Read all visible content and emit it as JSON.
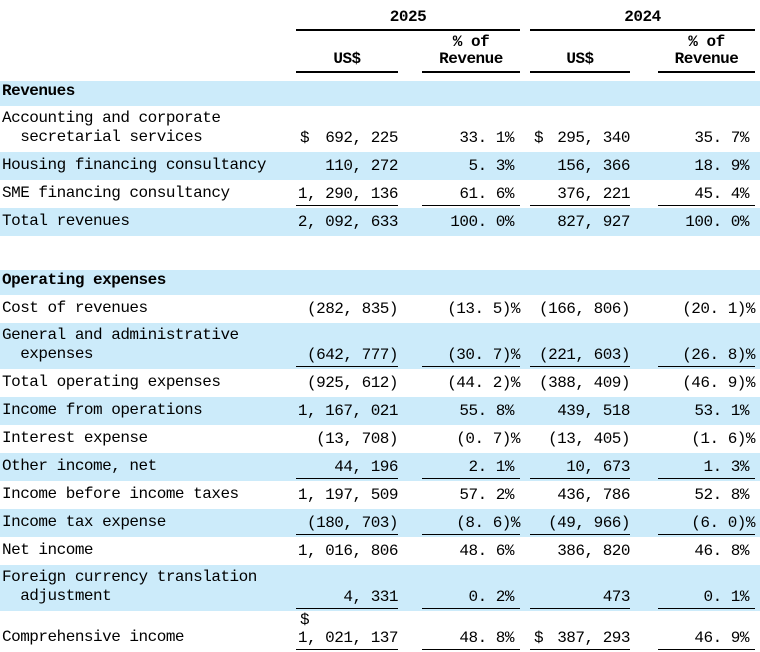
{
  "meta": {
    "row_highlight_color": "#ccebfa",
    "text_color": "#000000",
    "background_color": "#ffffff"
  },
  "header": {
    "col2025": "2025",
    "col2024": "2024",
    "usd_label": "US$",
    "pct_label_line1": "% of",
    "pct_label_line2": "Revenue"
  },
  "table": {
    "rows": [
      {
        "type": "section",
        "shaded": true,
        "lines": [
          "Revenues"
        ]
      },
      {
        "type": "data",
        "shaded": false,
        "underline": false,
        "lines": [
          "Accounting and corporate",
          "  secretarial services"
        ],
        "d25": "$",
        "usd25": "692, 225",
        "pct25": "33. 1%",
        "d24": "$",
        "usd24": "295, 340",
        "pct24": "35. 7%"
      },
      {
        "type": "data",
        "shaded": true,
        "underline": false,
        "lines": [
          "Housing financing consultancy"
        ],
        "usd25": "110, 272",
        "pct25": "5. 3%",
        "usd24": "156, 366",
        "pct24": "18. 9%"
      },
      {
        "type": "data",
        "shaded": false,
        "underline": true,
        "lines": [
          "SME financing consultancy"
        ],
        "usd25": "1, 290, 136",
        "pct25": "61. 6%",
        "usd24": "376, 221",
        "pct24": "45. 4%"
      },
      {
        "type": "data",
        "shaded": true,
        "underline": false,
        "lines": [
          "Total revenues"
        ],
        "usd25": "2, 092, 633",
        "pct25": "100. 0%",
        "usd24": "827, 927",
        "pct24": "100. 0%"
      },
      {
        "type": "spacer"
      },
      {
        "type": "section",
        "shaded": true,
        "lines": [
          "Operating expenses"
        ]
      },
      {
        "type": "data",
        "shaded": false,
        "underline": false,
        "lines": [
          "Cost of revenues"
        ],
        "usd25": "(282, 835)",
        "pct25": "(13. 5)%",
        "usd24": "(166, 806)",
        "pct24": "(20. 1)%"
      },
      {
        "type": "data",
        "shaded": true,
        "underline": true,
        "lines": [
          "General and administrative",
          "  expenses"
        ],
        "usd25": "(642, 777)",
        "pct25": "(30. 7)%",
        "usd24": "(221, 603)",
        "pct24": "(26. 8)%"
      },
      {
        "type": "data",
        "shaded": false,
        "underline": false,
        "lines": [
          "Total operating expenses"
        ],
        "usd25": "(925, 612)",
        "pct25": "(44. 2)%",
        "usd24": "(388, 409)",
        "pct24": "(46. 9)%"
      },
      {
        "type": "data",
        "shaded": true,
        "underline": false,
        "lines": [
          "Income from operations"
        ],
        "usd25": "1, 167, 021",
        "pct25": "55. 8%",
        "usd24": "439, 518",
        "pct24": "53. 1%"
      },
      {
        "type": "data",
        "shaded": false,
        "underline": false,
        "lines": [
          "Interest expense"
        ],
        "usd25": "(13, 708)",
        "pct25": "(0. 7)%",
        "usd24": "(13, 405)",
        "pct24": "(1. 6)%"
      },
      {
        "type": "data",
        "shaded": true,
        "underline": true,
        "lines": [
          "Other income, net"
        ],
        "usd25": "44, 196",
        "pct25": "2. 1%",
        "usd24": "10, 673",
        "pct24": "1. 3%"
      },
      {
        "type": "data",
        "shaded": false,
        "underline": false,
        "lines": [
          "Income before income taxes"
        ],
        "usd25": "1, 197, 509",
        "pct25": "57. 2%",
        "usd24": "436, 786",
        "pct24": "52. 8%"
      },
      {
        "type": "data",
        "shaded": true,
        "underline": true,
        "lines": [
          "Income tax expense"
        ],
        "usd25": "(180, 703)",
        "pct25": "(8. 6)%",
        "usd24": "(49, 966)",
        "pct24": "(6. 0)%"
      },
      {
        "type": "data",
        "shaded": false,
        "underline": false,
        "lines": [
          "Net income"
        ],
        "usd25": "1, 016, 806",
        "pct25": "48. 6%",
        "usd24": "386, 820",
        "pct24": "46. 8%"
      },
      {
        "type": "data",
        "shaded": true,
        "underline": true,
        "lines": [
          "Foreign currency translation",
          "  adjustment"
        ],
        "usd25": "4, 331",
        "pct25": "0. 2%",
        "usd24": "473",
        "pct24": "0. 1%"
      },
      {
        "type": "data",
        "shaded": false,
        "underline": true,
        "lines": [
          "Comprehensive income"
        ],
        "d25": "$",
        "usd25": "1, 021, 137",
        "pct25": "48. 8%",
        "d24": "$",
        "usd24": "387, 293",
        "pct24": "46. 9%"
      }
    ]
  }
}
